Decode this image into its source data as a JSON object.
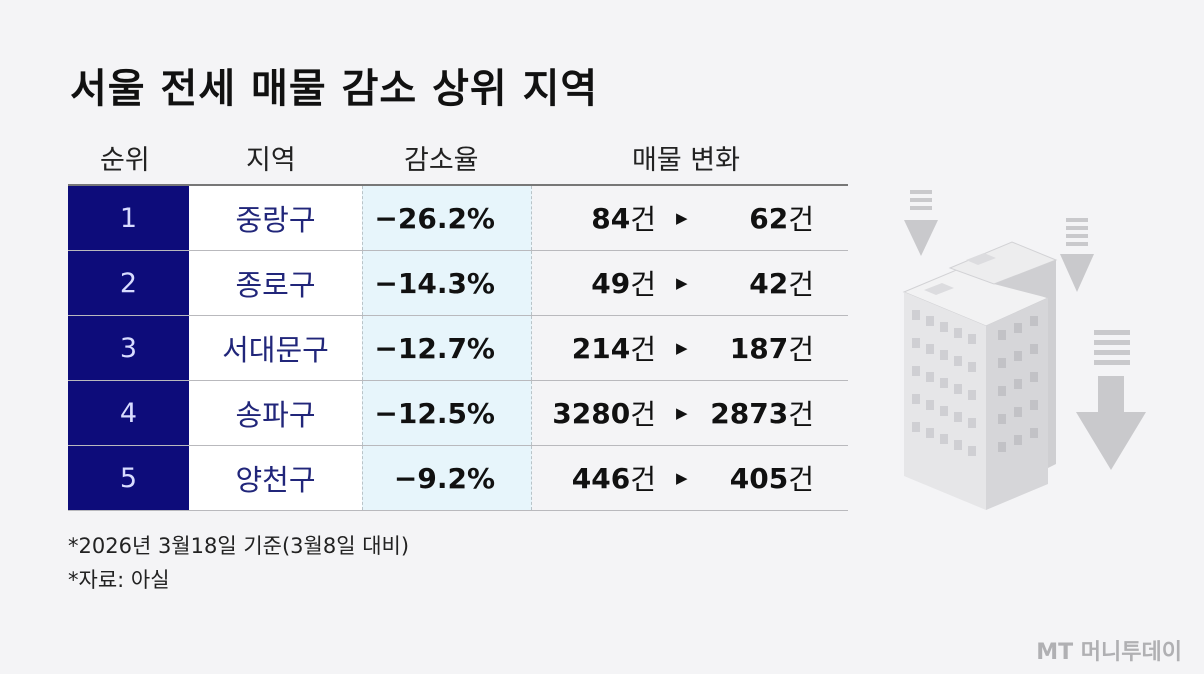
{
  "title": "서울 전세 매물 감소 상위 지역",
  "chart_data": {
    "type": "table",
    "columns": [
      "순위",
      "지역",
      "감소율",
      "매물 변화"
    ],
    "rows": [
      {
        "rank": "1",
        "region": "중랑구",
        "rate": "−26.2%",
        "from": "84",
        "to": "62"
      },
      {
        "rank": "2",
        "region": "종로구",
        "rate": "−14.3%",
        "from": "49",
        "to": "42"
      },
      {
        "rank": "3",
        "region": "서대문구",
        "rate": "−12.7%",
        "from": "214",
        "to": "187"
      },
      {
        "rank": "4",
        "region": "송파구",
        "rate": "−12.5%",
        "from": "3280",
        "to": "2873"
      },
      {
        "rank": "5",
        "region": "양천구",
        "rate": "−9.2%",
        "from": "446",
        "to": "405"
      }
    ],
    "unit": "건"
  },
  "notes": [
    "*2026년 3월18일 기준(3월8일 대비)",
    "*자료: 아실"
  ],
  "brand": "MT 머니투데이",
  "colors": {
    "rank_bg": "#0d0c7a",
    "rate_bg": "#e7f5fb",
    "region_text": "#21267a"
  },
  "icons": {
    "arrow": "triangle-right-icon",
    "illustration": "building-decline-icon"
  }
}
